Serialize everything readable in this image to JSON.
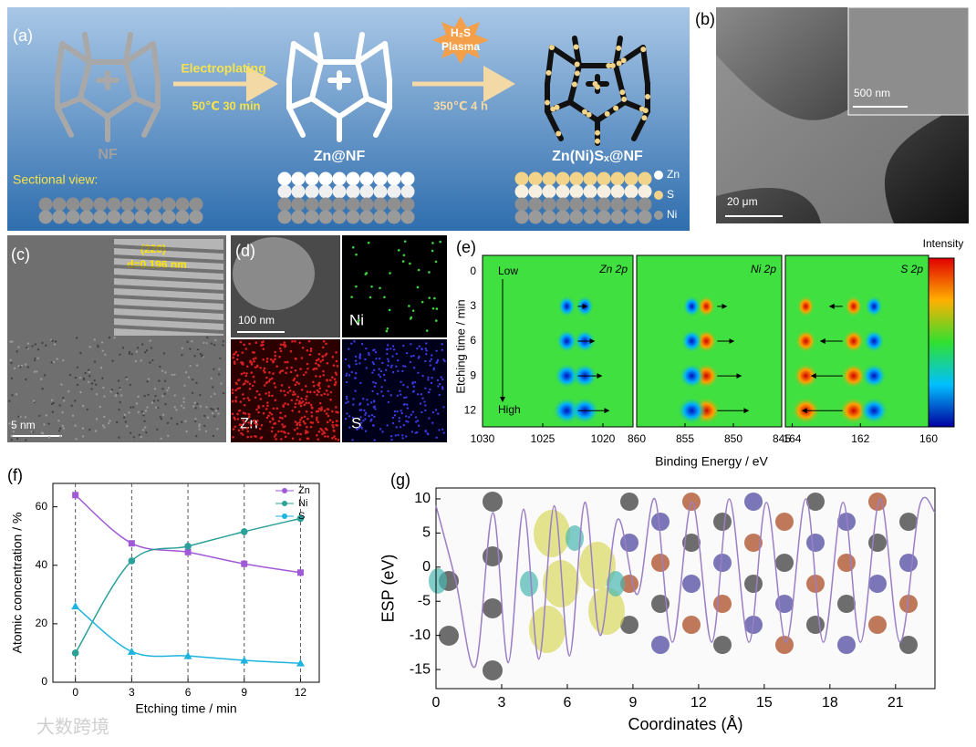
{
  "panel_a": {
    "label": "(a)",
    "step1": "Electroplating",
    "step1_conditions": "50℃  30 min",
    "plasma": [
      "H₂S",
      "Plasma"
    ],
    "step2_conditions": "350℃  4 h",
    "stages": [
      "NF",
      "Zn@NF",
      "Zn(Ni)Sₓ@NF"
    ],
    "sectional": "Sectional view:",
    "legend": [
      "Zn",
      "S",
      "Ni"
    ]
  },
  "panel_b": {
    "label": "(b)",
    "inset_scale": "500 nm",
    "scale": "20 μm"
  },
  "panel_c": {
    "label": "(c)",
    "plane": "(220)",
    "spacing": "d=0.196 nm",
    "scale": "5 nm"
  },
  "panel_d": {
    "label": "(d)",
    "scale": "100 nm",
    "maps": [
      "Ni",
      "Zn",
      "S"
    ]
  },
  "panel_e": {
    "label": "(e)",
    "ylabel": "Etching time / min",
    "xlabel": "Binding Energy / eV",
    "ylim": [
      -1.4,
      13.4
    ],
    "yticks": [
      0,
      3,
      6,
      9,
      12
    ],
    "low": "Low",
    "high": "High",
    "colorbar": "Intensity",
    "subplots": [
      {
        "title": "Zn 2p",
        "xlim": [
          1030,
          1017.5
        ],
        "xticks": [
          1030,
          1025,
          1020
        ]
      },
      {
        "title": "Ni 2p",
        "xlim": [
          860,
          845
        ],
        "xticks": [
          860,
          855,
          850,
          845
        ]
      },
      {
        "title": "S 2p",
        "xlim": [
          164.2,
          160
        ],
        "xticks": [
          164,
          162,
          160
        ]
      }
    ]
  },
  "chart_data": [
    {
      "type": "line",
      "label": "(f)",
      "xlabel": "Etching time / min",
      "ylabel": "Atomic concentration / %",
      "x": [
        0,
        3,
        6,
        9,
        12
      ],
      "xlim": [
        -1.2,
        13
      ],
      "ylim": [
        0,
        68
      ],
      "xticks": [
        0,
        3,
        6,
        9,
        12
      ],
      "yticks": [
        0,
        20,
        40,
        60
      ],
      "grid": "x",
      "legend": "upper right",
      "series": [
        {
          "name": "Zn",
          "color": "#a05ad8",
          "marker": "square",
          "values": [
            64,
            47.5,
            44.5,
            40.5,
            37.5
          ]
        },
        {
          "name": "Ni",
          "color": "#2aa198",
          "marker": "circle",
          "values": [
            10,
            41.5,
            46.5,
            51.5,
            56
          ]
        },
        {
          "name": "S",
          "color": "#1fb4e0",
          "marker": "triangle",
          "values": [
            26,
            10.5,
            9,
            7.5,
            6.5
          ]
        }
      ]
    },
    {
      "type": "line",
      "label": "(g)",
      "xlabel": "Coordinates (Å)",
      "ylabel": "ESP (eV)",
      "x": [
        0,
        0.9,
        1.8,
        2.6,
        3.3,
        4.0,
        4.7,
        5.4,
        6.1,
        6.8,
        7.5,
        8.3,
        9.2,
        10.0,
        10.8,
        11.7,
        12.6,
        13.4,
        14.3,
        15.1,
        16.0,
        16.9,
        17.7,
        18.6,
        19.4,
        20.3,
        21.2,
        22.1,
        22.8
      ],
      "values": [
        9,
        -2,
        -14.5,
        8,
        -14,
        8.5,
        -13.5,
        9,
        -13,
        9.5,
        -10,
        7,
        -4,
        10,
        -11,
        9.5,
        -11,
        10,
        -11,
        9.5,
        -11,
        10,
        -11,
        9.5,
        -11,
        10,
        -11,
        9,
        8
      ],
      "color": "#9b7fc4",
      "xlim": [
        0,
        22.8
      ],
      "ylim": [
        -17.8,
        11.6
      ],
      "xticks": [
        0,
        3,
        6,
        9,
        12,
        15,
        18,
        21
      ],
      "yticks": [
        -15,
        -10,
        -5,
        0,
        5,
        10
      ]
    }
  ],
  "watermark": "大数跨境"
}
